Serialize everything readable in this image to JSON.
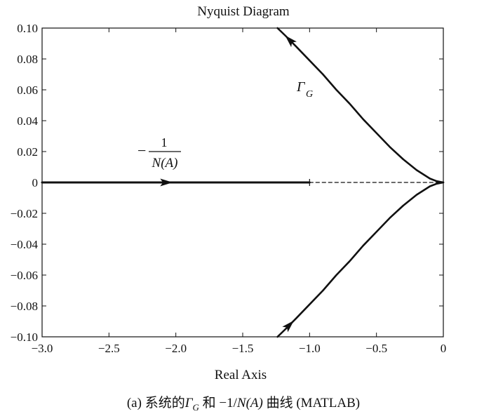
{
  "chart_data": {
    "type": "line",
    "title": "Nyquist Diagram",
    "xlabel": "Real Axis",
    "ylabel": "",
    "xlim": [
      -3.0,
      0
    ],
    "ylim": [
      -0.1,
      0.1
    ],
    "x_ticks": [
      -3.0,
      -2.5,
      -2.0,
      -1.5,
      -1.0,
      -0.5,
      0
    ],
    "x_tick_labels": [
      "−3.0",
      "−2.5",
      "−2.0",
      "−1.5",
      "−1.0",
      "−0.5",
      "0"
    ],
    "y_ticks": [
      0.1,
      0.08,
      0.06,
      0.04,
      0.02,
      0,
      -0.02,
      -0.04,
      -0.06,
      -0.08,
      -0.1
    ],
    "y_tick_labels": [
      "0.10",
      "0.08",
      "0.06",
      "0.04",
      "0.02",
      "0",
      "−0.02",
      "−0.04",
      "−0.06",
      "−0.08",
      "−0.10"
    ],
    "grid": false,
    "series": [
      {
        "curve": "gamma_upper",
        "x": [
          -1.24,
          -1.18,
          -1.1,
          -1.0,
          -0.9,
          -0.8,
          -0.7,
          -0.6,
          -0.5,
          -0.4,
          -0.3,
          -0.2,
          -0.1,
          -0.05,
          0
        ],
        "y": [
          0.1,
          0.095,
          0.088,
          0.079,
          0.07,
          0.06,
          0.051,
          0.041,
          0.032,
          0.023,
          0.015,
          0.008,
          0.0025,
          0.0008,
          0
        ]
      },
      {
        "curve": "gamma_lower",
        "x": [
          -1.24,
          -1.18,
          -1.1,
          -1.0,
          -0.9,
          -0.8,
          -0.7,
          -0.6,
          -0.5,
          -0.4,
          -0.3,
          -0.2,
          -0.1,
          -0.05,
          0
        ],
        "y": [
          -0.1,
          -0.095,
          -0.088,
          -0.079,
          -0.07,
          -0.06,
          -0.051,
          -0.041,
          -0.032,
          -0.023,
          -0.015,
          -0.008,
          -0.0025,
          -0.0008,
          0
        ]
      },
      {
        "curve": "neg_inv_NA_solid",
        "x": [
          -3.0,
          -1.0
        ],
        "y": [
          0,
          0
        ]
      },
      {
        "curve": "neg_inv_NA_dashed",
        "x": [
          -1.0,
          0
        ],
        "y": [
          0,
          0
        ]
      }
    ],
    "annotations": {
      "gamma_symbol": "Γ",
      "gamma_subscript": "G",
      "na_minus": "−",
      "na_numerator": "1",
      "na_denominator": "N(A)"
    },
    "caption": "(a) 系统的Γ_G 和 −1/N(A) 曲线 (MATLAB)"
  },
  "caption_parts": {
    "prefix": "(a)  系统的",
    "gamma": "Γ",
    "gamma_sub": "G",
    "middle": " 和 −1/",
    "na": "N(A)",
    "suffix": " 曲线 (MATLAB)"
  }
}
